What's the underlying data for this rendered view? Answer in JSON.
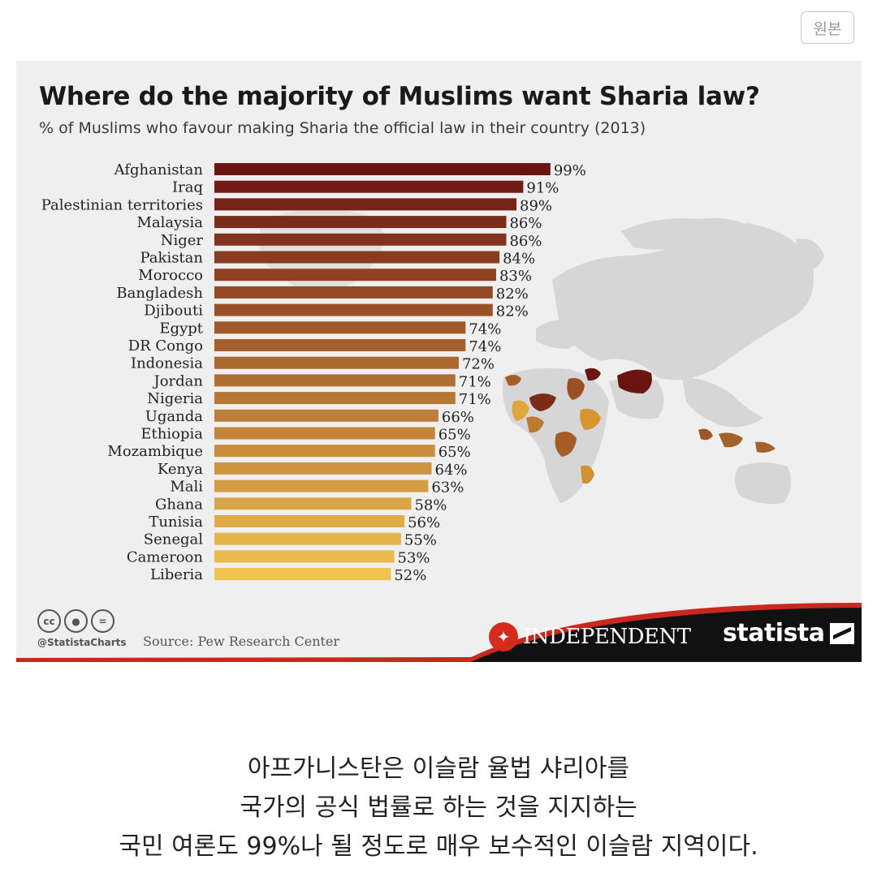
{
  "top_button": {
    "label": "원본"
  },
  "chart_data": {
    "type": "bar",
    "orientation": "horizontal",
    "title": "Where do the majority of Muslims want Sharia law?",
    "subtitle": "% of Muslims who favour making Sharia the official law in their country (2013)",
    "categories": [
      "Afghanistan",
      "Iraq",
      "Palestinian territories",
      "Malaysia",
      "Niger",
      "Pakistan",
      "Morocco",
      "Bangladesh",
      "Djibouti",
      "Egypt",
      "DR Congo",
      "Indonesia",
      "Jordan",
      "Nigeria",
      "Uganda",
      "Ethiopia",
      "Mozambique",
      "Kenya",
      "Mali",
      "Ghana",
      "Tunisia",
      "Senegal",
      "Cameroon",
      "Liberia"
    ],
    "values": [
      99,
      91,
      89,
      86,
      86,
      84,
      83,
      82,
      82,
      74,
      74,
      72,
      71,
      71,
      66,
      65,
      65,
      64,
      63,
      58,
      56,
      55,
      53,
      52
    ],
    "value_suffix": "%",
    "grid": false,
    "legend": "none",
    "color_scale": [
      "#6b1512",
      "#f0c250"
    ],
    "background_map": "world-map-choropleth"
  },
  "footer": {
    "cc_icons": [
      "cc-icon",
      "by-icon",
      "nd-icon"
    ],
    "handle": "@StatistaCharts",
    "source": "Source: Pew Research Center",
    "independent_logo": "INDEPENDENT",
    "statista_logo": "statista"
  },
  "caption": {
    "lines": [
      "아프가니스탄은 이슬람 율법 샤리아를",
      "국가의 공식 법률로 하는 것을 지지하는",
      "국민 여론도 99%나 될 정도로 매우 보수적인 이슬람 지역이다."
    ]
  },
  "colors": {
    "card_background": "#efefef",
    "banner_black": "#111111",
    "banner_red": "#c9281e",
    "map_gray": "#d6d6d6"
  }
}
